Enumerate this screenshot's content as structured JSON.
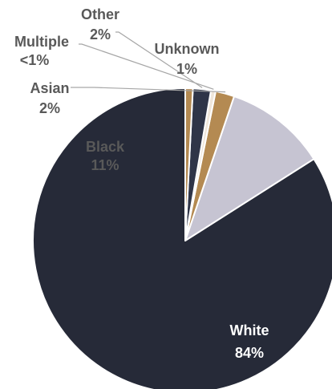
{
  "chart_data": {
    "type": "pie",
    "title": "",
    "slices": [
      {
        "name": "White",
        "pct_label": "84%",
        "value": 84.0,
        "color": "#262A38",
        "label_color": "#FFFFFF"
      },
      {
        "name": "Black",
        "pct_label": "11%",
        "value": 10.8,
        "color": "#C6C4D2",
        "label_color": "#595959"
      },
      {
        "name": "Asian",
        "pct_label": "2%",
        "value": 2.0,
        "color": "#B48A52",
        "label_color": "#595959"
      },
      {
        "name": "Multiple",
        "pct_label": "<1%",
        "value": 0.5,
        "color": "#EFE6DA",
        "label_color": "#595959"
      },
      {
        "name": "Other",
        "pct_label": "2%",
        "value": 1.9,
        "color": "#2F3548",
        "label_color": "#595959"
      },
      {
        "name": "Unknown",
        "pct_label": "1%",
        "value": 0.8,
        "color": "#B48A52",
        "label_color": "#595959"
      }
    ],
    "start_angle_deg": 0,
    "direction": "counterclockwise",
    "slice_border_color": "#FFFFFF",
    "leader_line_color": "#A6A6A6",
    "legend": "none"
  }
}
